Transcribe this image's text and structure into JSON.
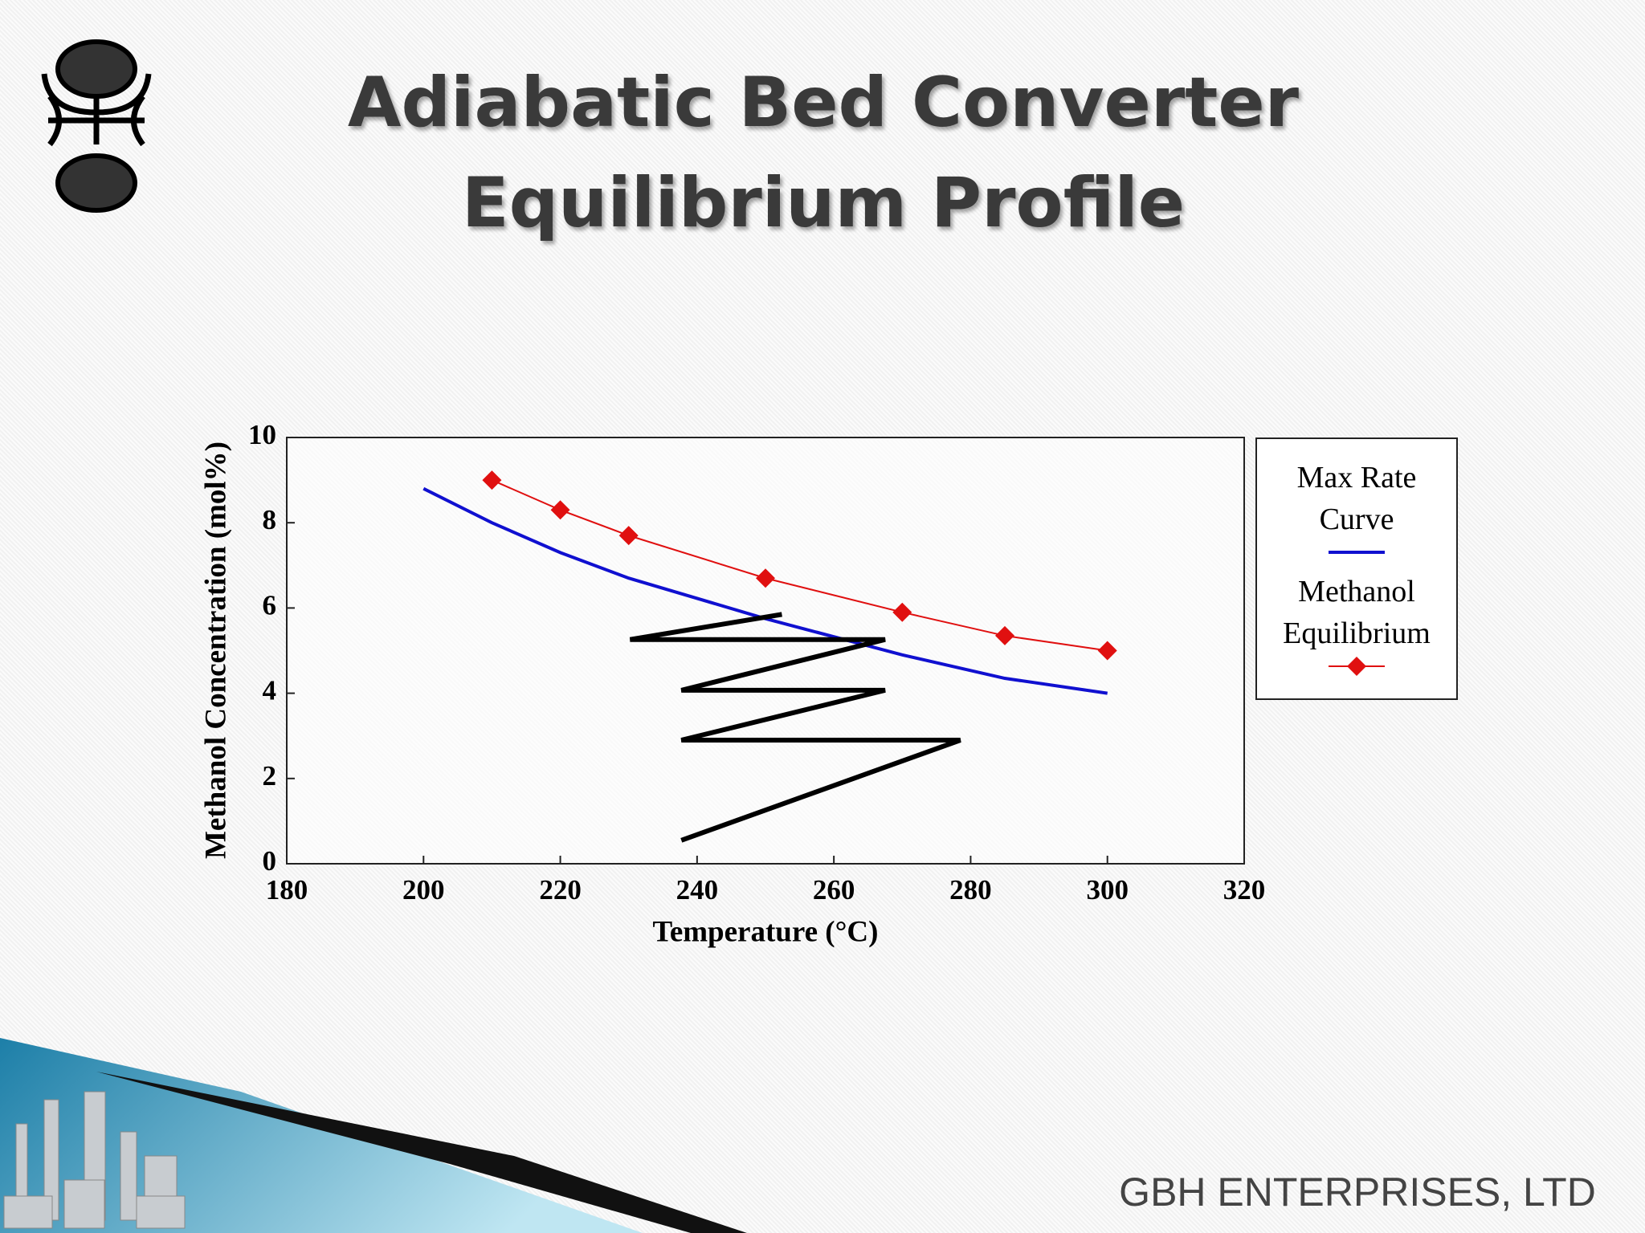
{
  "header": {
    "title_lines": [
      "Adiabatic Bed Converter",
      "Equilibrium Profile"
    ]
  },
  "footer": {
    "company": "GBH ENTERPRISES, LTD"
  },
  "chart_data": {
    "type": "line",
    "x_label": "Temperature (°C)",
    "y_label": "Methanol Concentration (mol%)",
    "xlim": [
      180,
      320
    ],
    "xticks": [
      180,
      200,
      220,
      240,
      260,
      280,
      300,
      320
    ],
    "ylim": [
      0,
      10
    ],
    "yticks": [
      0,
      2,
      4,
      6,
      8,
      10
    ],
    "grid": false,
    "legend": "right",
    "series": [
      {
        "name": "Max Rate Curve",
        "color": "#1010d0",
        "marker": "none",
        "x": [
          200,
          210,
          220,
          230,
          250,
          270,
          285,
          300
        ],
        "values": [
          8.8,
          8.0,
          7.3,
          6.7,
          5.75,
          4.9,
          4.35,
          4.0
        ]
      },
      {
        "name": "Methanol Equilibrium",
        "color": "#e01010",
        "marker": "diamond",
        "x": [
          210,
          220,
          230,
          250,
          270,
          285,
          300
        ],
        "values": [
          9.0,
          8.3,
          7.7,
          6.7,
          5.9,
          5.35,
          5.0
        ]
      },
      {
        "color": "#000000",
        "marker": "none",
        "x": [
          237.7,
          278.5,
          237.7,
          267.5,
          237.7,
          267.5,
          230.2,
          252.4
        ],
        "values": [
          0.55,
          2.9,
          2.9,
          4.07,
          4.07,
          5.26,
          5.26,
          5.85
        ]
      }
    ]
  }
}
